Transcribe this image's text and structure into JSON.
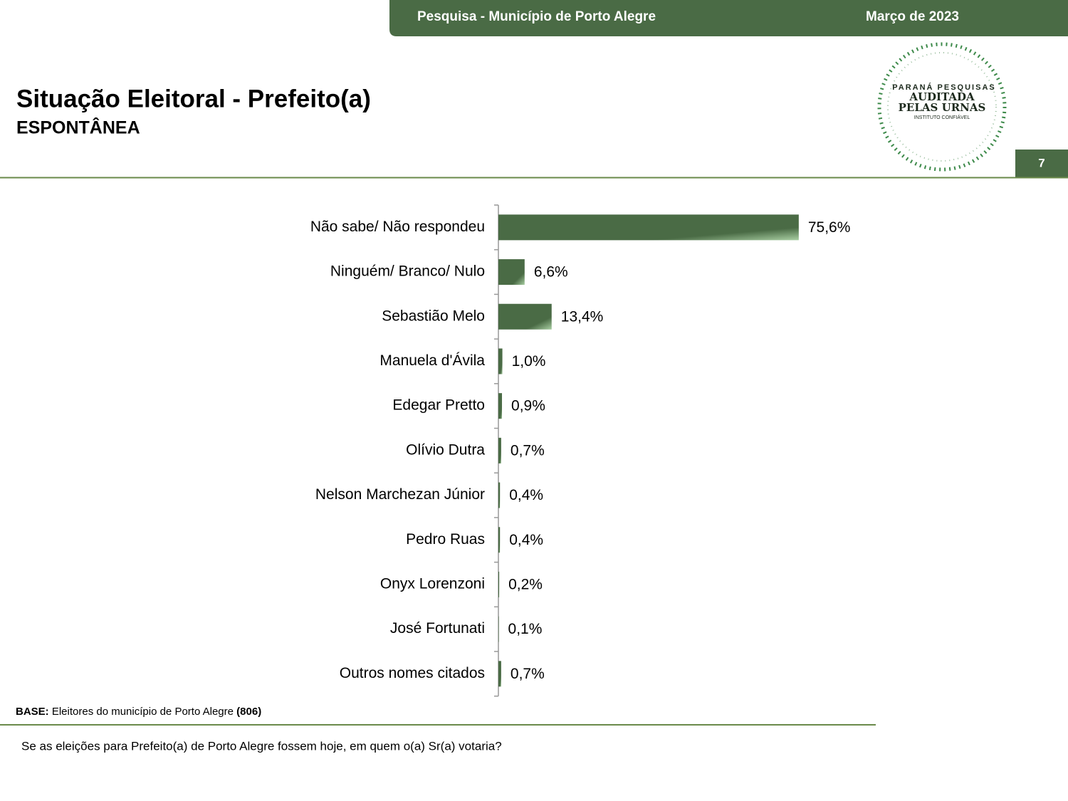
{
  "header": {
    "survey": "Pesquisa - Município de Porto Alegre",
    "date": "Março de 2023",
    "page": "7"
  },
  "logo": {
    "line1": "PARANÁ PESQUISAS",
    "line2": "AUDITADA",
    "line3": "PELAS URNAS",
    "line4": "INSTITUTO CONFIÁVEL"
  },
  "chart_data": {
    "type": "bar",
    "orientation": "horizontal",
    "title": "Situação Eleitoral - Prefeito(a)",
    "subtitle": "ESPONTÂNEA",
    "color": "#4a6b45",
    "categories": [
      "Não sabe/ Não respondeu",
      "Ninguém/ Branco/ Nulo",
      "Sebastião Melo",
      "Manuela d'Ávila",
      "Edegar Pretto",
      "Olívio Dutra",
      "Nelson Marchezan Júnior",
      "Pedro Ruas",
      "Onyx Lorenzoni",
      "José Fortunati",
      "Outros nomes citados"
    ],
    "values": [
      75.6,
      6.6,
      13.4,
      1.0,
      0.9,
      0.7,
      0.4,
      0.4,
      0.2,
      0.1,
      0.7
    ],
    "value_labels": [
      "75,6%",
      "6,6%",
      "13,4%",
      "1,0%",
      "0,9%",
      "0,7%",
      "0,4%",
      "0,4%",
      "0,2%",
      "0,1%",
      "0,7%"
    ]
  },
  "footer": {
    "base_label": "BASE:",
    "base_text": "Eleitores do município de Porto Alegre",
    "base_n": "(806)",
    "question": "Se as eleições para Prefeito(a) de Porto Alegre fossem hoje, em quem o(a) Sr(a) votaria?"
  }
}
